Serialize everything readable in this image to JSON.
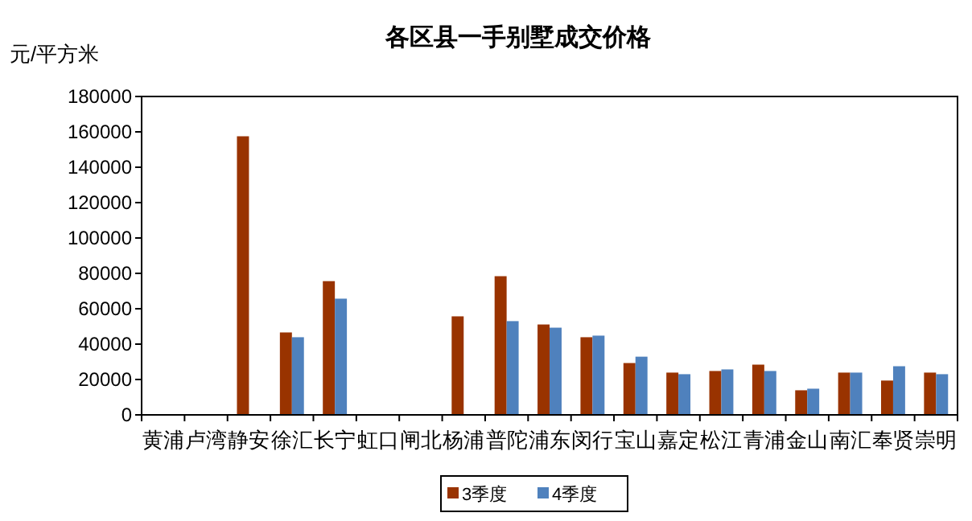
{
  "chart_data": {
    "type": "bar",
    "title": "各区县一手别墅成交价格",
    "ylabel": "元/平方米",
    "categories": [
      "黄浦",
      "卢湾",
      "静安",
      "徐汇",
      "长宁",
      "虹口",
      "闸北",
      "杨浦",
      "普陀",
      "浦东",
      "闵行",
      "宝山",
      "嘉定",
      "松江",
      "青浦",
      "金山",
      "南汇",
      "奉贤",
      "崇明"
    ],
    "series": [
      {
        "name": "3季度",
        "color": "#993300",
        "values": [
          null,
          null,
          157500,
          46600,
          75600,
          null,
          null,
          55700,
          78400,
          51100,
          43900,
          29300,
          23900,
          24800,
          28400,
          13900,
          23900,
          19400,
          23900
        ]
      },
      {
        "name": "4季度",
        "color": "#4f81bd",
        "values": [
          null,
          null,
          null,
          43900,
          65700,
          null,
          null,
          null,
          53000,
          49300,
          44800,
          32900,
          23000,
          25700,
          24800,
          14800,
          23900,
          27500,
          23000
        ]
      }
    ],
    "ylim": [
      0,
      180000
    ],
    "yticks": [
      0,
      20000,
      40000,
      60000,
      80000,
      100000,
      120000,
      140000,
      160000,
      180000
    ],
    "grid": false,
    "legend": "bottom"
  }
}
